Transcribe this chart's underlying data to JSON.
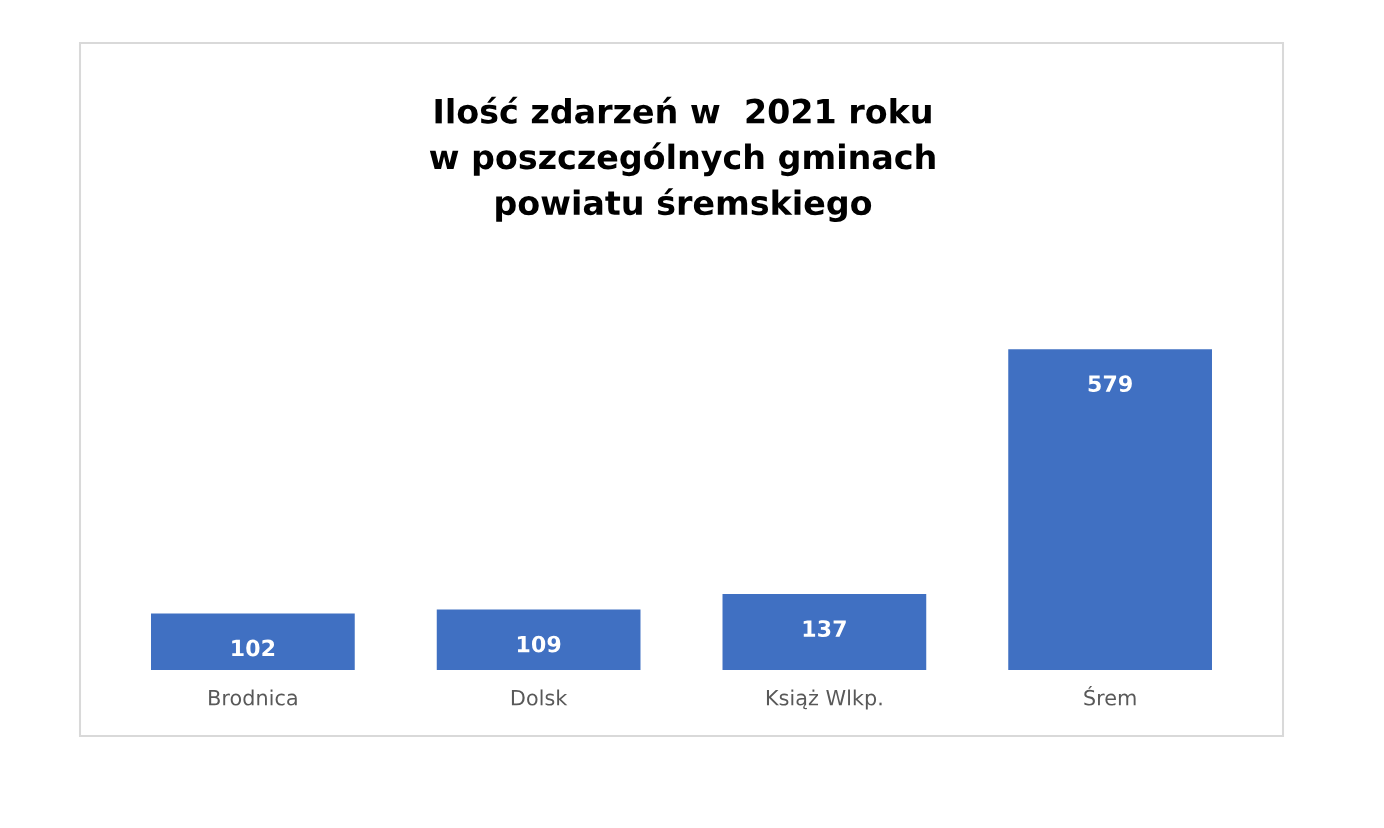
{
  "chart_data": {
    "type": "bar",
    "title": "Ilość zdarzeń w  2021 roku\nw poszczególnych gminach\npowiatu śremskiego",
    "categories": [
      "Brodnica",
      "Dolsk",
      "Książ Wlkp.",
      "Śrem"
    ],
    "values": [
      102,
      109,
      137,
      579
    ],
    "color": "#4070c2",
    "data_labels": true,
    "grid": false,
    "legend": false
  }
}
